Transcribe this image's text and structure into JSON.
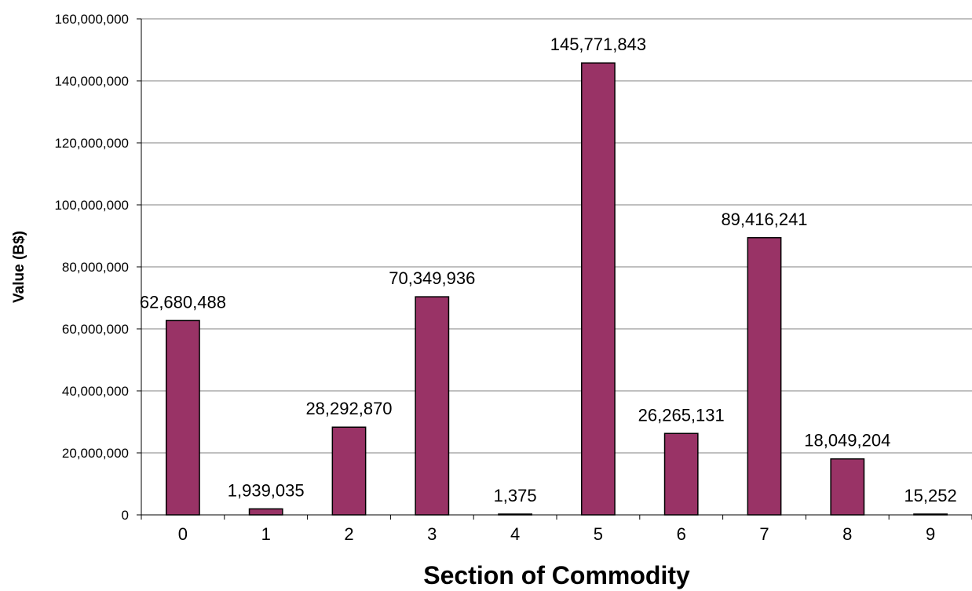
{
  "chart_data": {
    "type": "bar",
    "categories": [
      "0",
      "1",
      "2",
      "3",
      "4",
      "5",
      "6",
      "7",
      "8",
      "9"
    ],
    "values": [
      62680488,
      1939035,
      28292870,
      70349936,
      1375,
      145771843,
      26265131,
      89416241,
      18049204,
      15252
    ],
    "data_labels": [
      "62,680,488",
      "1,939,035",
      "28,292,870",
      "70,349,936",
      "1,375",
      "145,771,843",
      "26,265,131",
      "89,416,241",
      "18,049,204",
      "15,252"
    ],
    "ylim": [
      0,
      160000000
    ],
    "yticks": [
      0,
      20000000,
      40000000,
      60000000,
      80000000,
      100000000,
      120000000,
      140000000,
      160000000
    ],
    "ytick_labels": [
      "0",
      "20,000,000",
      "40,000,000",
      "60,000,000",
      "80,000,000",
      "100,000,000",
      "120,000,000",
      "140,000,000",
      "160,000,000"
    ],
    "xlabel": "Section of Commodity",
    "ylabel": "Value (B$)",
    "grid": true,
    "legend": false,
    "bar_color": "#993366"
  }
}
